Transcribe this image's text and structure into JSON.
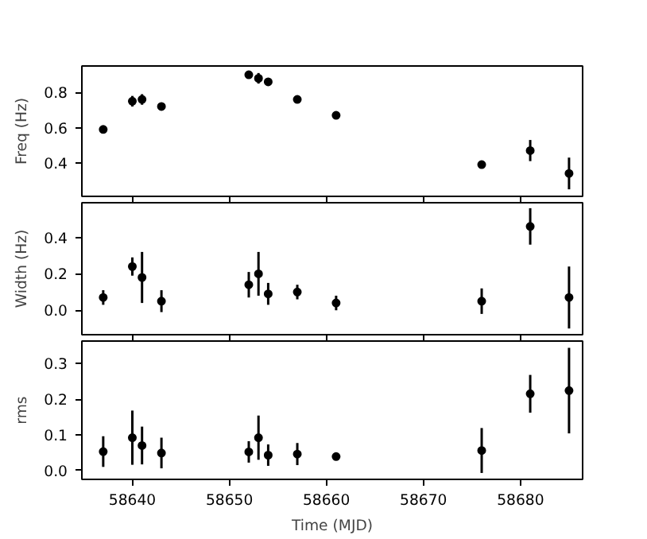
{
  "chart_data": [
    {
      "type": "scatter",
      "ylabel": "Freq (Hz)",
      "x": [
        58637,
        58640,
        58641,
        58643,
        58652,
        58653,
        58654,
        58657,
        58661,
        58676,
        58681,
        58685
      ],
      "series": [
        {
          "color": "#000000",
          "values": [
            0.59,
            0.75,
            0.76,
            0.72,
            0.9,
            0.88,
            0.86,
            0.76,
            0.67,
            0.39,
            0.47,
            0.34
          ],
          "errors": [
            null,
            0.03,
            0.03,
            null,
            null,
            0.03,
            null,
            null,
            null,
            null,
            0.06,
            0.09
          ]
        }
      ],
      "xlim": [
        58634.8,
        58686.4
      ],
      "xticks": [
        58640,
        58650,
        58660,
        58670,
        58680
      ],
      "ylim": [
        0.21,
        0.95
      ],
      "yticks": [
        0.4,
        0.6,
        0.8
      ],
      "tick_labels": "y",
      "marker": "circle"
    },
    {
      "type": "scatter",
      "ylabel": "Width (Hz)",
      "x": [
        58637,
        58640,
        58641,
        58643,
        58652,
        58653,
        58654,
        58657,
        58661,
        58676,
        58681,
        58685
      ],
      "series": [
        {
          "color": "#000000",
          "values": [
            0.07,
            0.24,
            0.18,
            0.05,
            0.14,
            0.2,
            0.09,
            0.1,
            0.04,
            0.05,
            0.46,
            0.07
          ],
          "errors": [
            0.04,
            0.05,
            0.14,
            0.06,
            0.07,
            0.12,
            0.06,
            0.04,
            0.04,
            0.07,
            0.1,
            0.17
          ]
        }
      ],
      "xlim": [
        58634.8,
        58686.4
      ],
      "xticks": [
        58640,
        58650,
        58660,
        58670,
        58680
      ],
      "ylim": [
        -0.134,
        0.59
      ],
      "yticks": [
        {
          "value": 0,
          "label": "0.0"
        },
        0.2,
        0.4
      ],
      "tick_labels": "y",
      "marker": "circle"
    },
    {
      "type": "scatter",
      "ylabel": "rms",
      "xlabel": "Time (MJD)",
      "x": [
        58637,
        58640,
        58641,
        58643,
        58652,
        58653,
        58654,
        58657,
        58661,
        58676,
        58681,
        58685
      ],
      "series": [
        {
          "color": "#000000",
          "values": [
            0.053,
            0.092,
            0.07,
            0.049,
            0.052,
            0.092,
            0.043,
            0.046,
            0.039,
            0.056,
            0.215,
            0.224
          ],
          "errors": [
            0.043,
            0.076,
            0.053,
            0.043,
            0.03,
            0.062,
            0.03,
            0.031,
            null,
            0.063,
            0.053,
            0.12
          ]
        }
      ],
      "xlim": [
        58634.8,
        58686.4
      ],
      "xticks": [
        58640,
        58650,
        58660,
        58670,
        58680
      ],
      "ylim": [
        -0.025,
        0.363
      ],
      "yticks": [
        {
          "value": 0,
          "label": "0.0"
        },
        0.1,
        0.2,
        0.3
      ],
      "marker": "circle"
    }
  ]
}
